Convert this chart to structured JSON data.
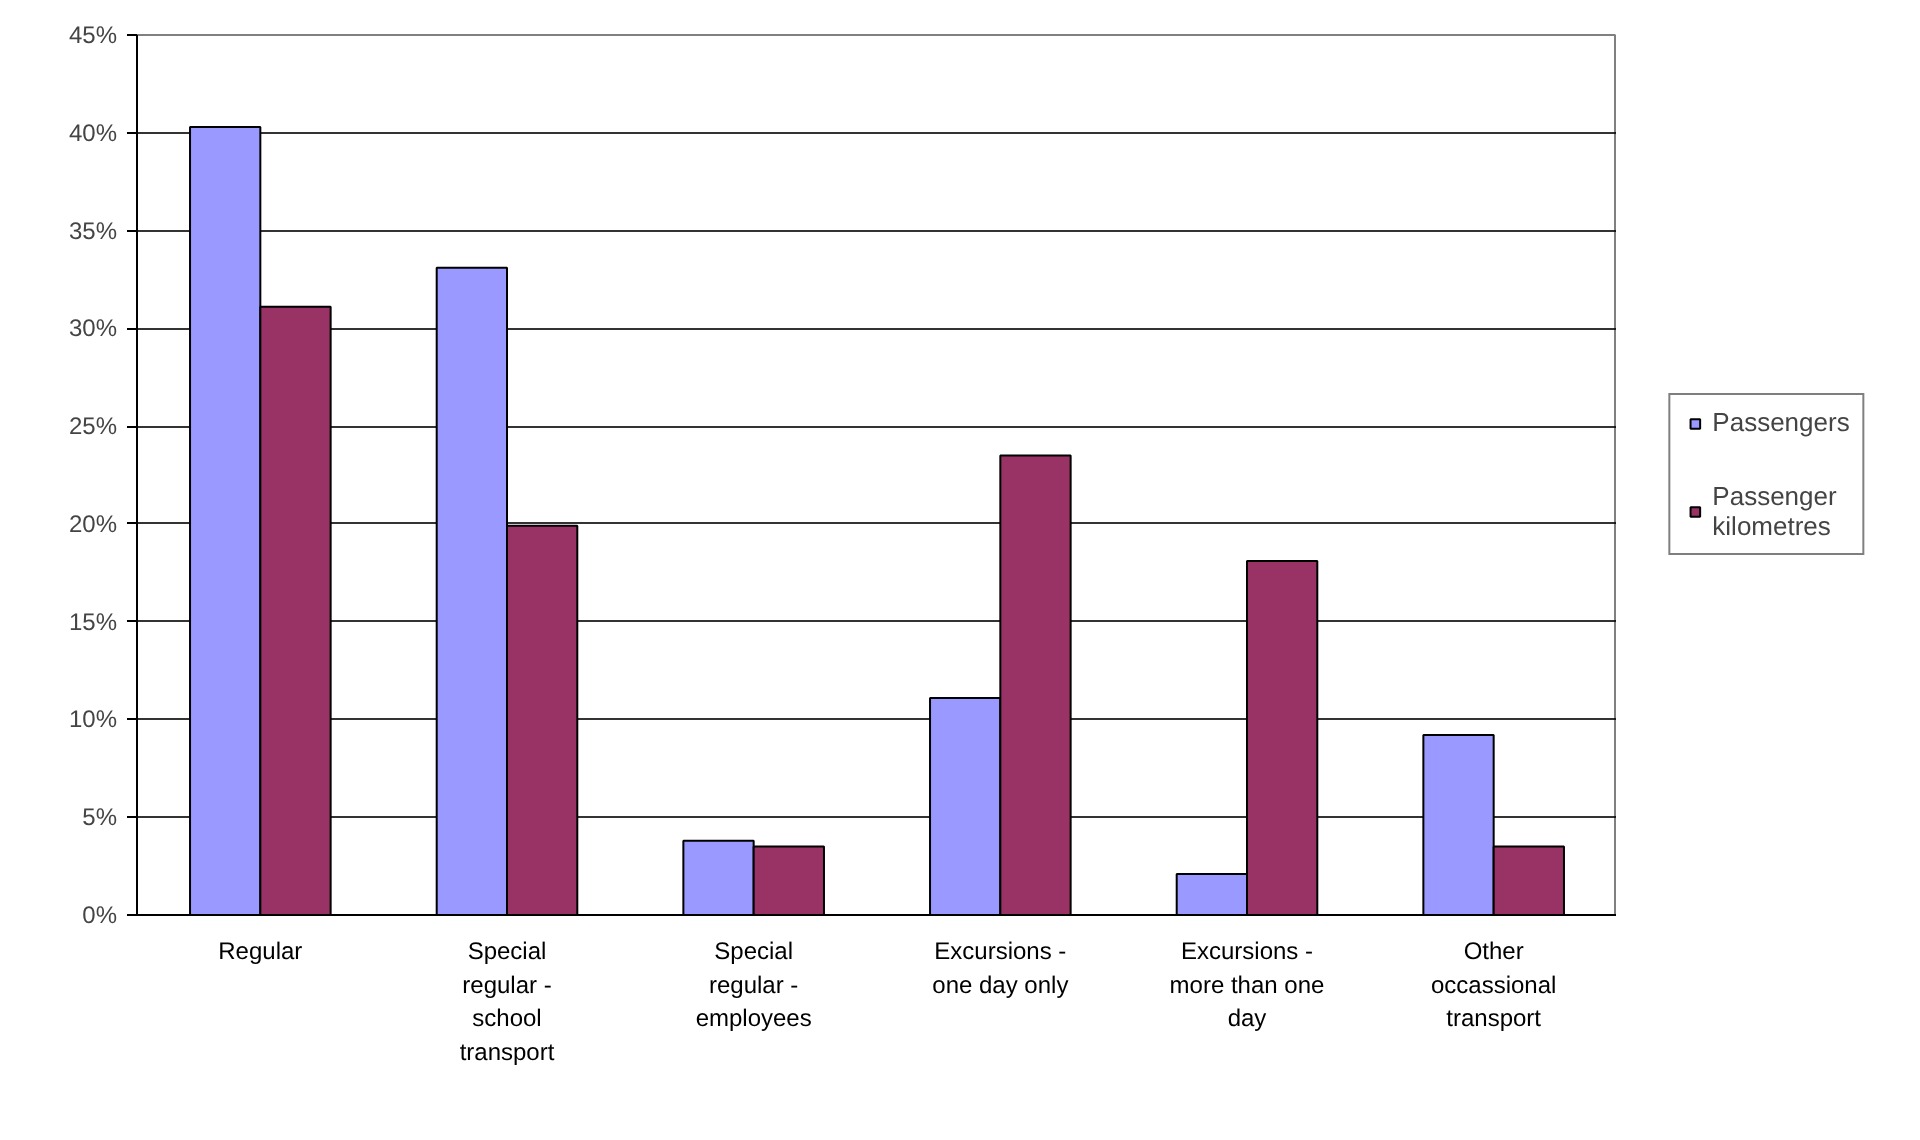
{
  "chart_data": {
    "type": "bar",
    "categories": [
      "Regular",
      "Special regular - school transport",
      "Special regular - employees",
      "Excursions - one day only",
      "Excursions - more than one day",
      "Other occassional transport"
    ],
    "series": [
      {
        "name": "Passengers",
        "color": "#9999ff",
        "values": [
          40.3,
          33.1,
          3.8,
          11.1,
          2.1,
          9.2
        ]
      },
      {
        "name": "Passenger kilometres",
        "color": "#993366",
        "values": [
          31.1,
          19.9,
          3.5,
          23.5,
          18.1,
          3.5
        ]
      }
    ],
    "ylim": [
      0,
      45
    ],
    "yticks": [
      {
        "value": 0,
        "label": "0%"
      },
      {
        "value": 5,
        "label": "5%"
      },
      {
        "value": 10,
        "label": "10%"
      },
      {
        "value": 15,
        "label": "15%"
      },
      {
        "value": 20,
        "label": "20%"
      },
      {
        "value": 25,
        "label": "25%"
      },
      {
        "value": 30,
        "label": "30%"
      },
      {
        "value": 35,
        "label": "35%"
      },
      {
        "value": 40,
        "label": "40%"
      },
      {
        "value": 45,
        "label": "45%"
      }
    ],
    "grid": "y",
    "legend": "right"
  }
}
